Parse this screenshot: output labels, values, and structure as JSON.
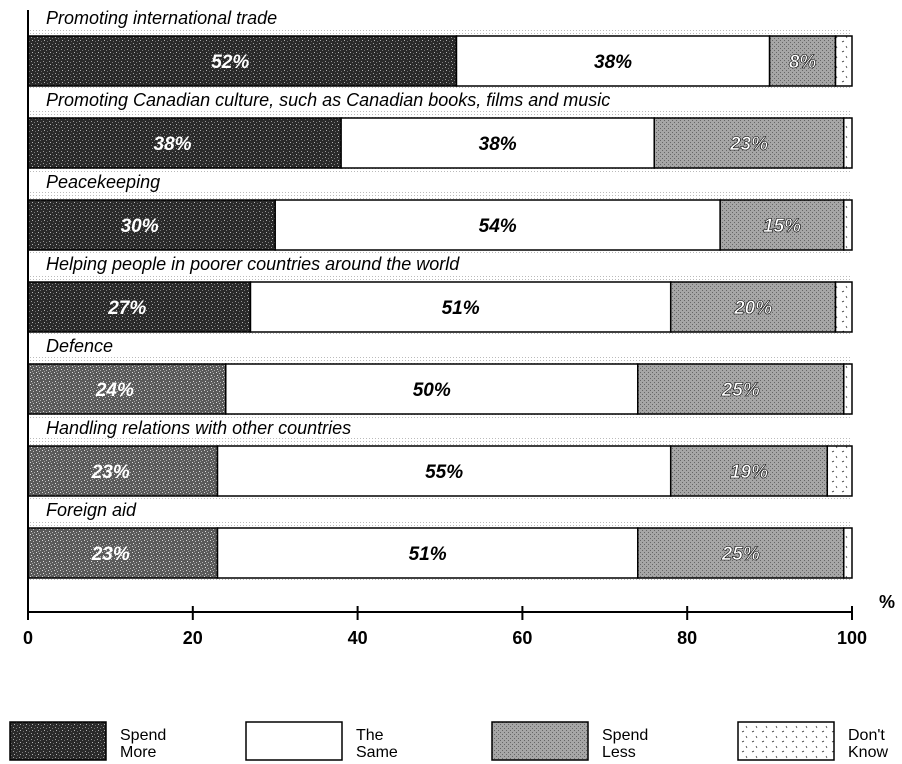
{
  "chart_data": {
    "type": "bar",
    "orientation": "horizontal",
    "stacked": true,
    "categories": [
      "Promoting international trade",
      "Promoting Canadian culture, such as Canadian books, films and music",
      "Peacekeeping",
      "Helping people in poorer countries around the world",
      "Defence",
      "Handling relations with other countries",
      "Foreign aid"
    ],
    "series": [
      {
        "name": "Spend More",
        "legend_lines": [
          "Spend",
          "More"
        ],
        "values": [
          52,
          38,
          30,
          27,
          24,
          23,
          23
        ],
        "labels": [
          "52%",
          "38%",
          "30%",
          "27%",
          "24%",
          "23%",
          "23%"
        ]
      },
      {
        "name": "The Same",
        "legend_lines": [
          "The",
          "Same"
        ],
        "values": [
          38,
          38,
          54,
          51,
          50,
          55,
          51
        ],
        "labels": [
          "38%",
          "38%",
          "54%",
          "51%",
          "50%",
          "55%",
          "51%"
        ]
      },
      {
        "name": "Spend Less",
        "legend_lines": [
          "Spend",
          "Less"
        ],
        "values": [
          8,
          23,
          15,
          20,
          25,
          19,
          25
        ],
        "labels": [
          "8%",
          "23%",
          "15%",
          "20%",
          "25%",
          "19%",
          "25%"
        ]
      },
      {
        "name": "Don't Know",
        "legend_lines": [
          "Don't",
          "Know"
        ],
        "values": [
          2,
          1,
          1,
          2,
          1,
          3,
          1
        ],
        "labels": [
          "",
          "",
          "",
          "",
          "",
          "",
          ""
        ]
      }
    ],
    "xlim": [
      0,
      100
    ],
    "xticks": [
      "0",
      "20",
      "40",
      "60",
      "80",
      "100"
    ],
    "unit_label": "%",
    "legend_position": "bottom",
    "colors": {
      "spend_more": "#2f2f2f",
      "the_same": "#ffffff",
      "spend_less": "#9a9a9a",
      "dont_know": "#ffffff"
    }
  }
}
